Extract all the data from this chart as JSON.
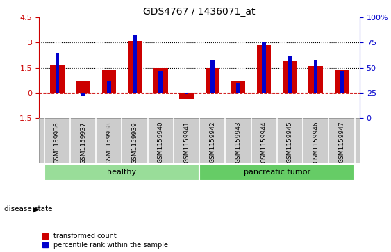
{
  "title": "GDS4767 / 1436071_at",
  "samples": [
    "GSM1159936",
    "GSM1159937",
    "GSM1159938",
    "GSM1159939",
    "GSM1159940",
    "GSM1159941",
    "GSM1159942",
    "GSM1159943",
    "GSM1159944",
    "GSM1159945",
    "GSM1159946",
    "GSM1159947"
  ],
  "red_values": [
    1.7,
    0.7,
    1.35,
    3.1,
    1.5,
    -0.4,
    1.5,
    0.75,
    2.85,
    1.9,
    1.6,
    1.35
  ],
  "blue_pct": [
    65,
    22,
    37,
    82,
    47,
    24,
    58,
    35,
    76,
    62,
    57,
    47
  ],
  "ylim_left": [
    -1.5,
    4.5
  ],
  "ylim_right": [
    0,
    100
  ],
  "yticks_left": [
    -1.5,
    0.0,
    1.5,
    3.0,
    4.5
  ],
  "yticks_right": [
    0,
    25,
    50,
    75,
    100
  ],
  "groups": [
    {
      "label": "healthy",
      "start": 0,
      "end": 6,
      "color": "#99dd99"
    },
    {
      "label": "pancreatic tumor",
      "start": 6,
      "end": 12,
      "color": "#66cc66"
    }
  ],
  "disease_state_label": "disease state",
  "legend_items": [
    {
      "color": "#cc0000",
      "label": "transformed count"
    },
    {
      "color": "#0000cc",
      "label": "percentile rank within the sample"
    }
  ],
  "bar_color_red": "#cc0000",
  "bar_color_blue": "#0000cc",
  "bar_width": 0.55,
  "blue_bar_width": 0.15,
  "background_color": "#ffffff",
  "label_area_color": "#cccccc",
  "title_fontsize": 10
}
